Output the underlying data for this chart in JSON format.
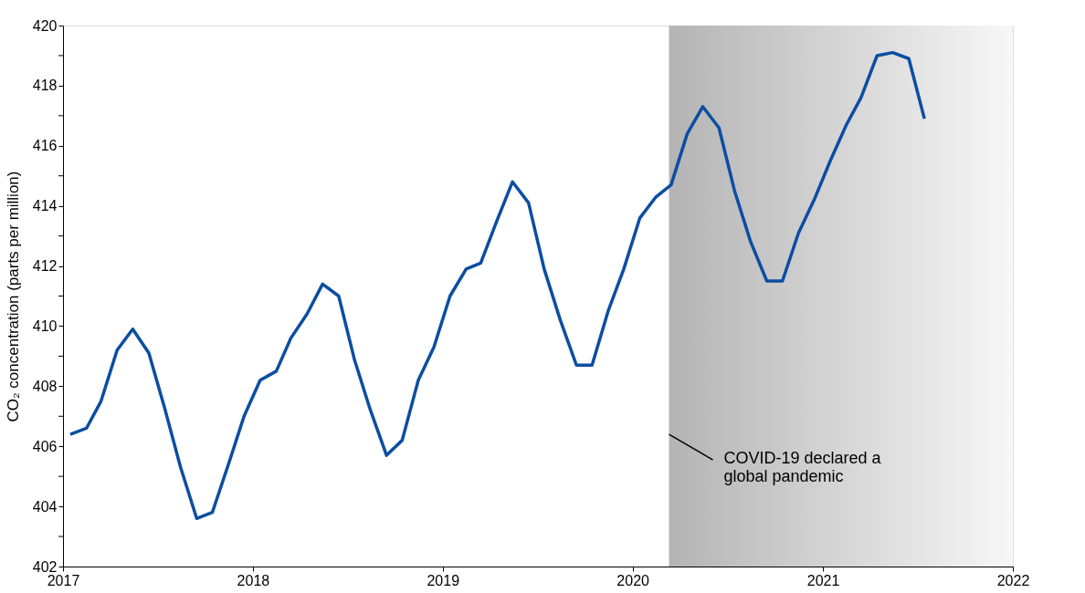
{
  "chart_data": {
    "type": "line",
    "ylabel": "CO₂ concentration (parts per million)",
    "x": [
      "2017-01-15",
      "2017-02-15",
      "2017-03-15",
      "2017-04-15",
      "2017-05-15",
      "2017-06-15",
      "2017-07-15",
      "2017-08-15",
      "2017-09-15",
      "2017-10-15",
      "2017-11-15",
      "2017-12-15",
      "2018-01-15",
      "2018-02-15",
      "2018-03-15",
      "2018-04-15",
      "2018-05-15",
      "2018-06-15",
      "2018-07-15",
      "2018-08-15",
      "2018-09-15",
      "2018-10-15",
      "2018-11-15",
      "2018-12-15",
      "2019-01-15",
      "2019-02-15",
      "2019-03-15",
      "2019-04-15",
      "2019-05-15",
      "2019-06-15",
      "2019-07-15",
      "2019-08-15",
      "2019-09-15",
      "2019-10-15",
      "2019-11-15",
      "2019-12-15",
      "2020-01-15",
      "2020-02-15",
      "2020-03-15",
      "2020-04-15",
      "2020-05-15",
      "2020-06-15",
      "2020-07-15",
      "2020-08-15",
      "2020-09-15",
      "2020-10-15",
      "2020-11-15",
      "2020-12-15",
      "2021-01-15",
      "2021-02-15",
      "2021-03-15",
      "2021-04-15",
      "2021-05-15",
      "2021-06-15",
      "2021-07-15"
    ],
    "series": [
      {
        "color": "#0b4ea2",
        "values": [
          406.4,
          406.6,
          407.5,
          409.2,
          409.9,
          409.1,
          407.3,
          405.3,
          403.6,
          403.8,
          405.4,
          407.0,
          408.2,
          408.5,
          409.6,
          410.4,
          411.4,
          411.0,
          408.9,
          407.2,
          405.7,
          406.2,
          408.2,
          409.3,
          411.0,
          411.9,
          412.1,
          413.5,
          414.8,
          414.1,
          411.9,
          410.2,
          408.7,
          408.7,
          410.5,
          411.9,
          413.6,
          414.3,
          414.7,
          416.4,
          417.3,
          416.6,
          414.5,
          412.8,
          411.5,
          411.5,
          413.1,
          414.2,
          415.5,
          416.7,
          417.6,
          419.0,
          419.1,
          418.9,
          416.9
        ]
      }
    ],
    "xlim": [
      "2017",
      "2022"
    ],
    "xticks": [
      "2017",
      "2018",
      "2019",
      "2020",
      "2021",
      "2022"
    ],
    "ylim": [
      402,
      420
    ],
    "yticks": [
      402,
      {
        "value": 403,
        "label": null
      },
      404,
      {
        "value": 405,
        "label": null
      },
      406,
      {
        "value": 407,
        "label": null
      },
      408,
      {
        "value": 409,
        "label": null
      },
      410,
      {
        "value": 411,
        "label": null
      },
      412,
      {
        "value": 413,
        "label": null
      },
      414,
      {
        "value": 415,
        "label": null
      },
      416,
      {
        "value": 417,
        "label": null
      },
      418,
      {
        "value": 419,
        "label": null
      },
      420
    ],
    "bands": [
      {
        "axis": "x",
        "from": "2020-03-11",
        "to": "2022",
        "color": "#b4b4b4"
      }
    ],
    "annotations": [
      {
        "text": "COVID-19 declared a\nglobal pandemic",
        "x": "2020-03-11",
        "y": 406.4
      }
    ],
    "grid": false,
    "marker": "none",
    "line_style": "solid"
  }
}
